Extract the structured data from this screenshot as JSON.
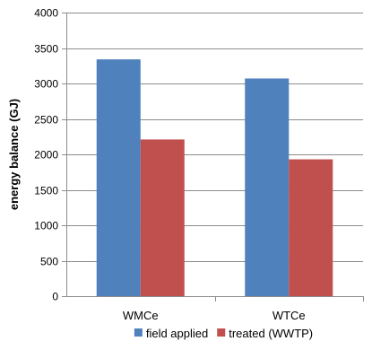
{
  "chart_data": {
    "type": "bar",
    "categories": [
      "WMCe",
      "WTCe"
    ],
    "series": [
      {
        "name": "field applied",
        "color": "#4F81BD",
        "values": [
          3340,
          3070
        ]
      },
      {
        "name": "treated (WWTP)",
        "color": "#C0504D",
        "values": [
          2210,
          1930
        ]
      }
    ],
    "xlabel": "",
    "ylabel": "energy balance (GJ)",
    "ylim": [
      0,
      4000
    ],
    "yticks": [
      0,
      500,
      1000,
      1500,
      2000,
      2500,
      3000,
      3500,
      4000
    ],
    "grid": true,
    "legend_position": "bottom"
  }
}
